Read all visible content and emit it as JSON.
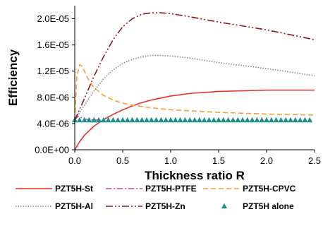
{
  "chart_data": {
    "type": "line",
    "title": "",
    "xlabel": "Thickness ratio R",
    "ylabel": "Efficiency",
    "xlim": [
      0,
      2.5
    ],
    "ylim": [
      0,
      2.2e-05
    ],
    "x_ticks": [
      0,
      0.5,
      1,
      1.5,
      2,
      2.5
    ],
    "x_tick_labels": [
      "0.0",
      "0.5",
      "1.0",
      "1.5",
      "2.0",
      "2.5"
    ],
    "y_ticks": [
      0,
      4e-06,
      8e-06,
      1.2e-05,
      1.6e-05,
      2e-05
    ],
    "y_tick_labels": [
      "0.0E+00",
      "4.0E-06",
      "8.0E-06",
      "1.2E-05",
      "1.6E-05",
      "2.0E-05"
    ],
    "grid": false,
    "legend_position": "bottom",
    "series": [
      {
        "name": "PZT5H-St",
        "style": "solid",
        "color": "#e8302a",
        "x": [
          0,
          0.05,
          0.1,
          0.2,
          0.3,
          0.4,
          0.5,
          0.6,
          0.7,
          0.8,
          1.0,
          1.2,
          1.5,
          2.0,
          2.5
        ],
        "y": [
          0,
          1.2e-06,
          2.2e-06,
          3.6e-06,
          4.6e-06,
          5.4e-06,
          6.1e-06,
          6.7e-06,
          7.2e-06,
          7.6e-06,
          8.2e-06,
          8.6e-06,
          8.9e-06,
          9.1e-06,
          9.1e-06
        ]
      },
      {
        "name": "PZT5H-PTFE",
        "style": "dash-dot",
        "color": "#cc44aa",
        "x": [
          0,
          0.02,
          0.04,
          0.06,
          0.08,
          0.1,
          0.15,
          0.2,
          0.3
        ],
        "y": [
          4.5e-06,
          4.9e-06,
          5.1e-06,
          5e-06,
          4.8e-06,
          4.7e-06,
          4.6e-06,
          4.55e-06,
          4.5e-06
        ]
      },
      {
        "name": "PZT5H-CPVC",
        "style": "dashed",
        "color": "#f5a033",
        "x": [
          0,
          0.02,
          0.05,
          0.08,
          0.1,
          0.15,
          0.2,
          0.3,
          0.4,
          0.5,
          0.6,
          0.8,
          1.0,
          1.5,
          2.0,
          2.5
        ],
        "y": [
          4.5e-06,
          1.1e-05,
          1.3e-05,
          1.27e-05,
          1.2e-05,
          1.05e-05,
          9.5e-06,
          8.3e-06,
          7.6e-06,
          7.1e-06,
          6.8e-06,
          6.4e-06,
          6.1e-06,
          5.7e-06,
          5.45e-06,
          5.3e-06
        ]
      },
      {
        "name": "PZT5H-Al",
        "style": "dotted",
        "color": "#888888",
        "x": [
          0,
          0.1,
          0.2,
          0.3,
          0.4,
          0.5,
          0.6,
          0.7,
          0.8,
          0.9,
          1.0,
          1.2,
          1.5,
          2.0,
          2.5
        ],
        "y": [
          4.5e-06,
          6.8e-06,
          9e-06,
          1.08e-05,
          1.22e-05,
          1.32e-05,
          1.38e-05,
          1.42e-05,
          1.44e-05,
          1.44e-05,
          1.43e-05,
          1.4e-05,
          1.33e-05,
          1.24e-05,
          1.13e-05
        ]
      },
      {
        "name": "PZT5H-Zn",
        "style": "dash-dot-dot",
        "color": "#8b1a1a",
        "x": [
          0,
          0.1,
          0.2,
          0.3,
          0.4,
          0.5,
          0.6,
          0.7,
          0.8,
          0.9,
          1.0,
          1.2,
          1.5,
          2.0,
          2.5
        ],
        "y": [
          4.5e-06,
          7.8e-06,
          1.12e-05,
          1.42e-05,
          1.68e-05,
          1.88e-05,
          2e-05,
          2.07e-05,
          2.09e-05,
          2.09e-05,
          2.08e-05,
          2.03e-05,
          1.95e-05,
          1.83e-05,
          1.68e-05
        ]
      },
      {
        "name": "PZT5H alone",
        "style": "markers",
        "marker": "triangle",
        "color": "#1f8f8a",
        "x": [
          0,
          0.05,
          0.1,
          0.15,
          0.2,
          0.25,
          0.3,
          0.35,
          0.4,
          0.45,
          0.5,
          0.55,
          0.6,
          0.65,
          0.7,
          0.75,
          0.8,
          0.85,
          0.9,
          0.95,
          1.0,
          1.05,
          1.1,
          1.15,
          1.2,
          1.25,
          1.3,
          1.35,
          1.4,
          1.45,
          1.5,
          1.55,
          1.6,
          1.65,
          1.7,
          1.75,
          1.8,
          1.85,
          1.9,
          1.95,
          2.0,
          2.05,
          2.1,
          2.15,
          2.2,
          2.25,
          2.3,
          2.35,
          2.4,
          2.45
        ],
        "y": [
          4.5e-06,
          4.5e-06,
          4.5e-06,
          4.5e-06,
          4.5e-06,
          4.5e-06,
          4.5e-06,
          4.5e-06,
          4.5e-06,
          4.5e-06,
          4.5e-06,
          4.5e-06,
          4.5e-06,
          4.5e-06,
          4.5e-06,
          4.5e-06,
          4.5e-06,
          4.5e-06,
          4.5e-06,
          4.5e-06,
          4.5e-06,
          4.5e-06,
          4.5e-06,
          4.5e-06,
          4.5e-06,
          4.5e-06,
          4.5e-06,
          4.5e-06,
          4.5e-06,
          4.5e-06,
          4.5e-06,
          4.5e-06,
          4.5e-06,
          4.5e-06,
          4.5e-06,
          4.5e-06,
          4.5e-06,
          4.5e-06,
          4.5e-06,
          4.5e-06,
          4.5e-06,
          4.5e-06,
          4.5e-06,
          4.5e-06,
          4.5e-06,
          4.5e-06,
          4.5e-06,
          4.5e-06,
          4.5e-06,
          4.5e-06
        ]
      }
    ]
  }
}
